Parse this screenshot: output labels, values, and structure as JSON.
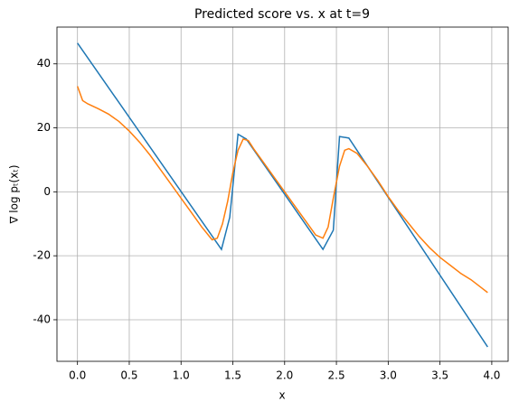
{
  "chart_data": {
    "type": "line",
    "title": "Predicted score vs. x at t=9",
    "xlabel": "x",
    "ylabel": "∇ log pₜ(xₜ)",
    "xlim": [
      -0.198,
      4.158
    ],
    "ylim": [
      -53,
      51.5
    ],
    "xticks": [
      {
        "value": 0,
        "label": "0.0"
      },
      0.5,
      {
        "value": 1,
        "label": "1.0"
      },
      1.5,
      {
        "value": 2,
        "label": "2.0"
      },
      2.5,
      {
        "value": 3,
        "label": "3.0"
      },
      3.5,
      {
        "value": 4,
        "label": "4.0"
      }
    ],
    "yticks": [
      -40,
      -20,
      0,
      20,
      40
    ],
    "grid": true,
    "series": [
      {
        "color": "#1f77b4",
        "x": [
          0,
          1.39,
          1.47,
          1.55,
          1.63,
          2.37,
          2.47,
          2.53,
          2.62,
          3.96
        ],
        "values": [
          46.5,
          -18,
          -8,
          18,
          16.5,
          -18,
          -12,
          17.3,
          16.8,
          -48.5
        ]
      },
      {
        "color": "#ff7f0e",
        "x": [
          0,
          0.05,
          0.1,
          0.2,
          0.3,
          0.4,
          0.5,
          0.6,
          0.7,
          0.8,
          0.9,
          1.0,
          1.1,
          1.2,
          1.3,
          1.35,
          1.4,
          1.45,
          1.5,
          1.55,
          1.6,
          1.65,
          1.7,
          1.8,
          1.9,
          2.0,
          2.1,
          2.2,
          2.3,
          2.37,
          2.42,
          2.47,
          2.53,
          2.58,
          2.62,
          2.7,
          2.8,
          2.9,
          3.0,
          3.1,
          3.2,
          3.3,
          3.4,
          3.5,
          3.6,
          3.7,
          3.8,
          3.9,
          3.96
        ],
        "values": [
          33,
          28.5,
          27.5,
          26,
          24.3,
          22,
          19,
          15.5,
          11.5,
          7,
          2.5,
          -2,
          -6.5,
          -11,
          -15,
          -14.5,
          -10,
          -3,
          6,
          13,
          16.5,
          16,
          13.5,
          9,
          4.5,
          0,
          -4.5,
          -9,
          -13.5,
          -14.5,
          -11,
          -2,
          8,
          13,
          13.5,
          12,
          8,
          3.5,
          -1.5,
          -6,
          -10,
          -14,
          -17.5,
          -20.5,
          -23,
          -25.5,
          -27.5,
          -30,
          -31.5
        ]
      }
    ]
  }
}
